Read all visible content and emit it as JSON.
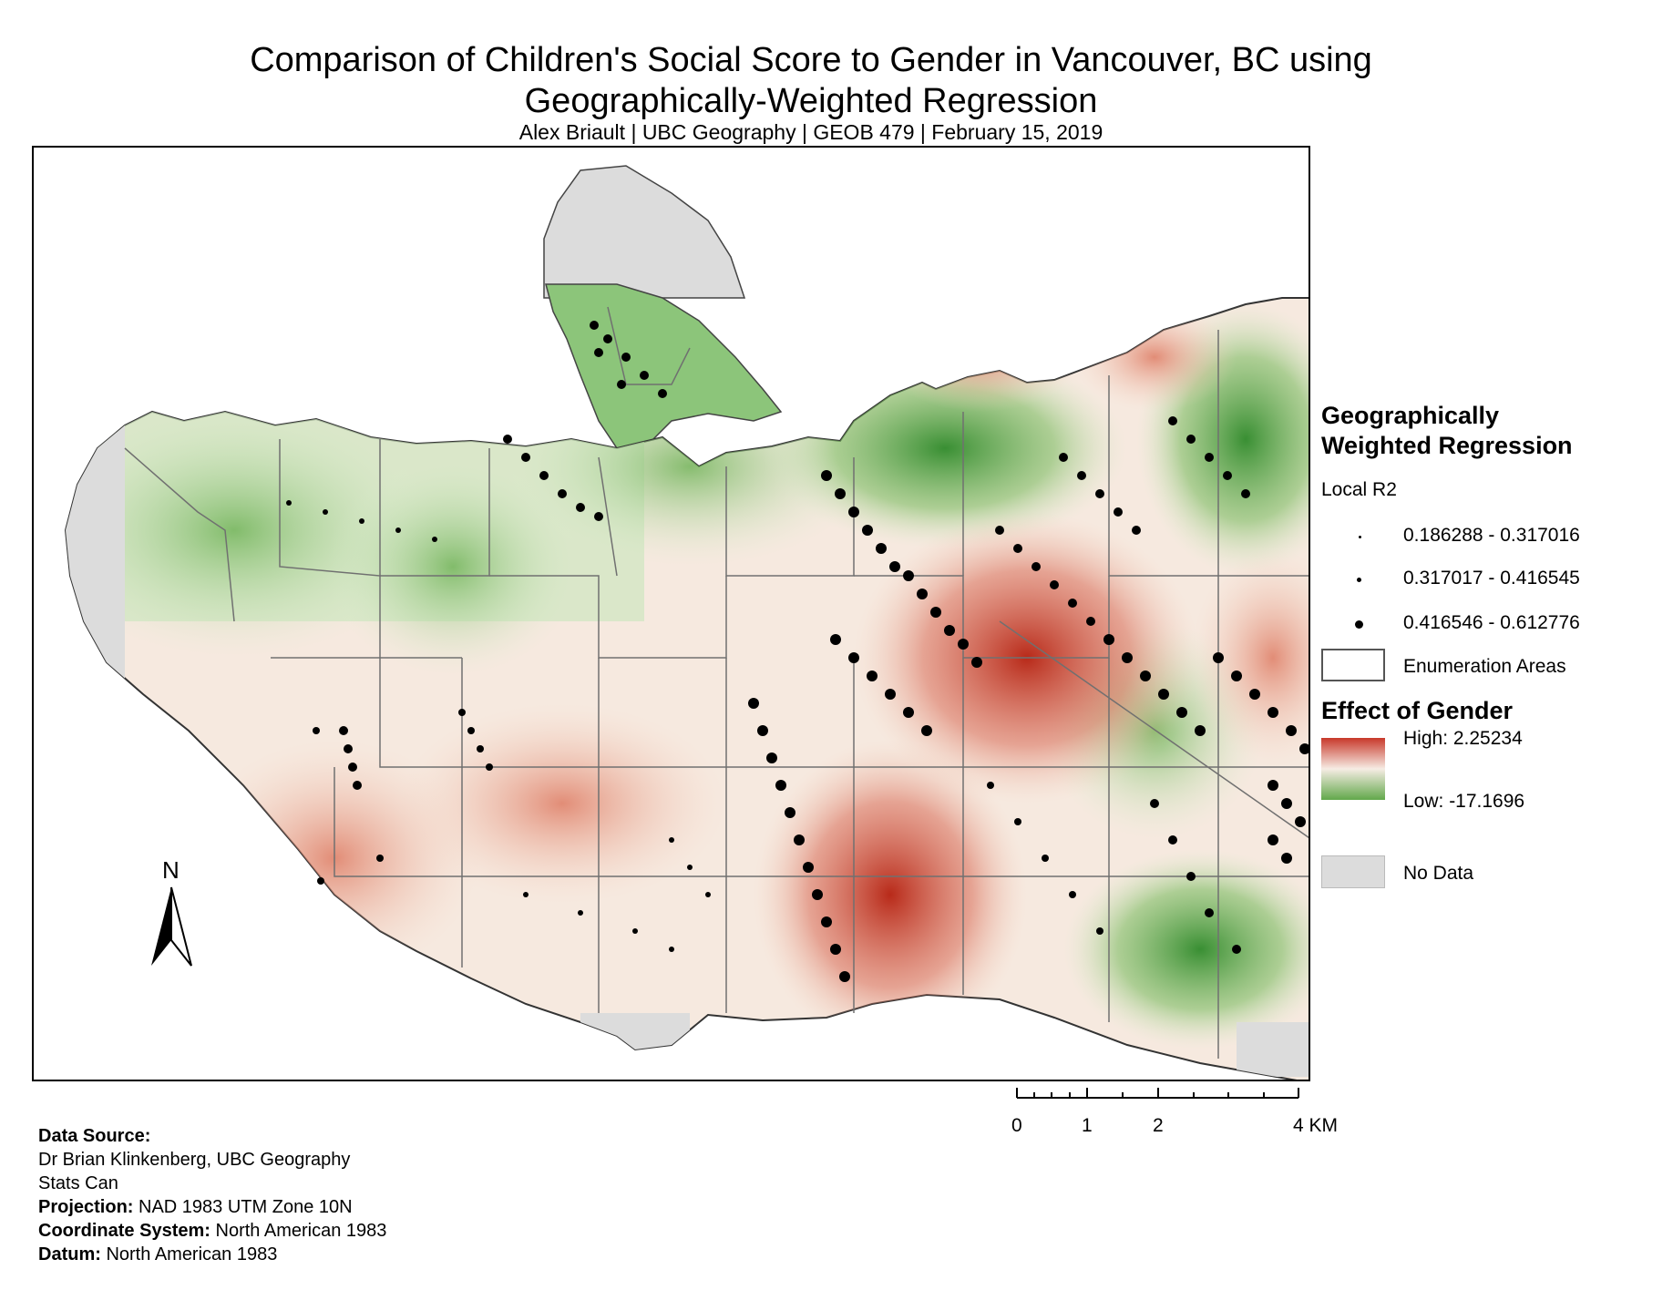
{
  "title_line1": "Comparison of Children's Social Score to Gender in Vancouver, BC using",
  "title_line2": "Geographically-Weighted Regression",
  "subtitle": "Alex Briault  |  UBC Geography  |  GEOB 479  |  February 15, 2019",
  "north_label": "N",
  "legend": {
    "gwr_heading_line1": "Geographically",
    "gwr_heading_line2": "Weighted Regression",
    "local_r2_label": "Local R2",
    "r2_classes": [
      {
        "label": "0.186288 - 0.317016"
      },
      {
        "label": "0.317017 - 0.416545"
      },
      {
        "label": "0.416546 - 0.612776"
      }
    ],
    "enumeration_label": "Enumeration Areas",
    "gender_heading": "Effect of Gender",
    "high_label": "High: 2.25234",
    "low_label": "Low: -17.1696",
    "nodata_label": "No Data"
  },
  "colors": {
    "high": "#b5200f",
    "mid": "#f7f1e4",
    "low": "#4c9e3a",
    "no_data": "#dcdcdc",
    "boundary": "#707070"
  },
  "scale_bar": {
    "labels": [
      "0",
      "1",
      "2",
      "4 KM"
    ]
  },
  "footer": {
    "data_source_label": "Data Source:",
    "source_line1": "Dr Brian Klinkenberg, UBC Geography",
    "source_line2": "Stats Can",
    "projection_label": "Projection:",
    "projection_value": "NAD 1983 UTM Zone 10N",
    "coord_label": "Coordinate System:",
    "coord_value": "North American 1983",
    "datum_label": "Datum:",
    "datum_value": "North American 1983"
  }
}
